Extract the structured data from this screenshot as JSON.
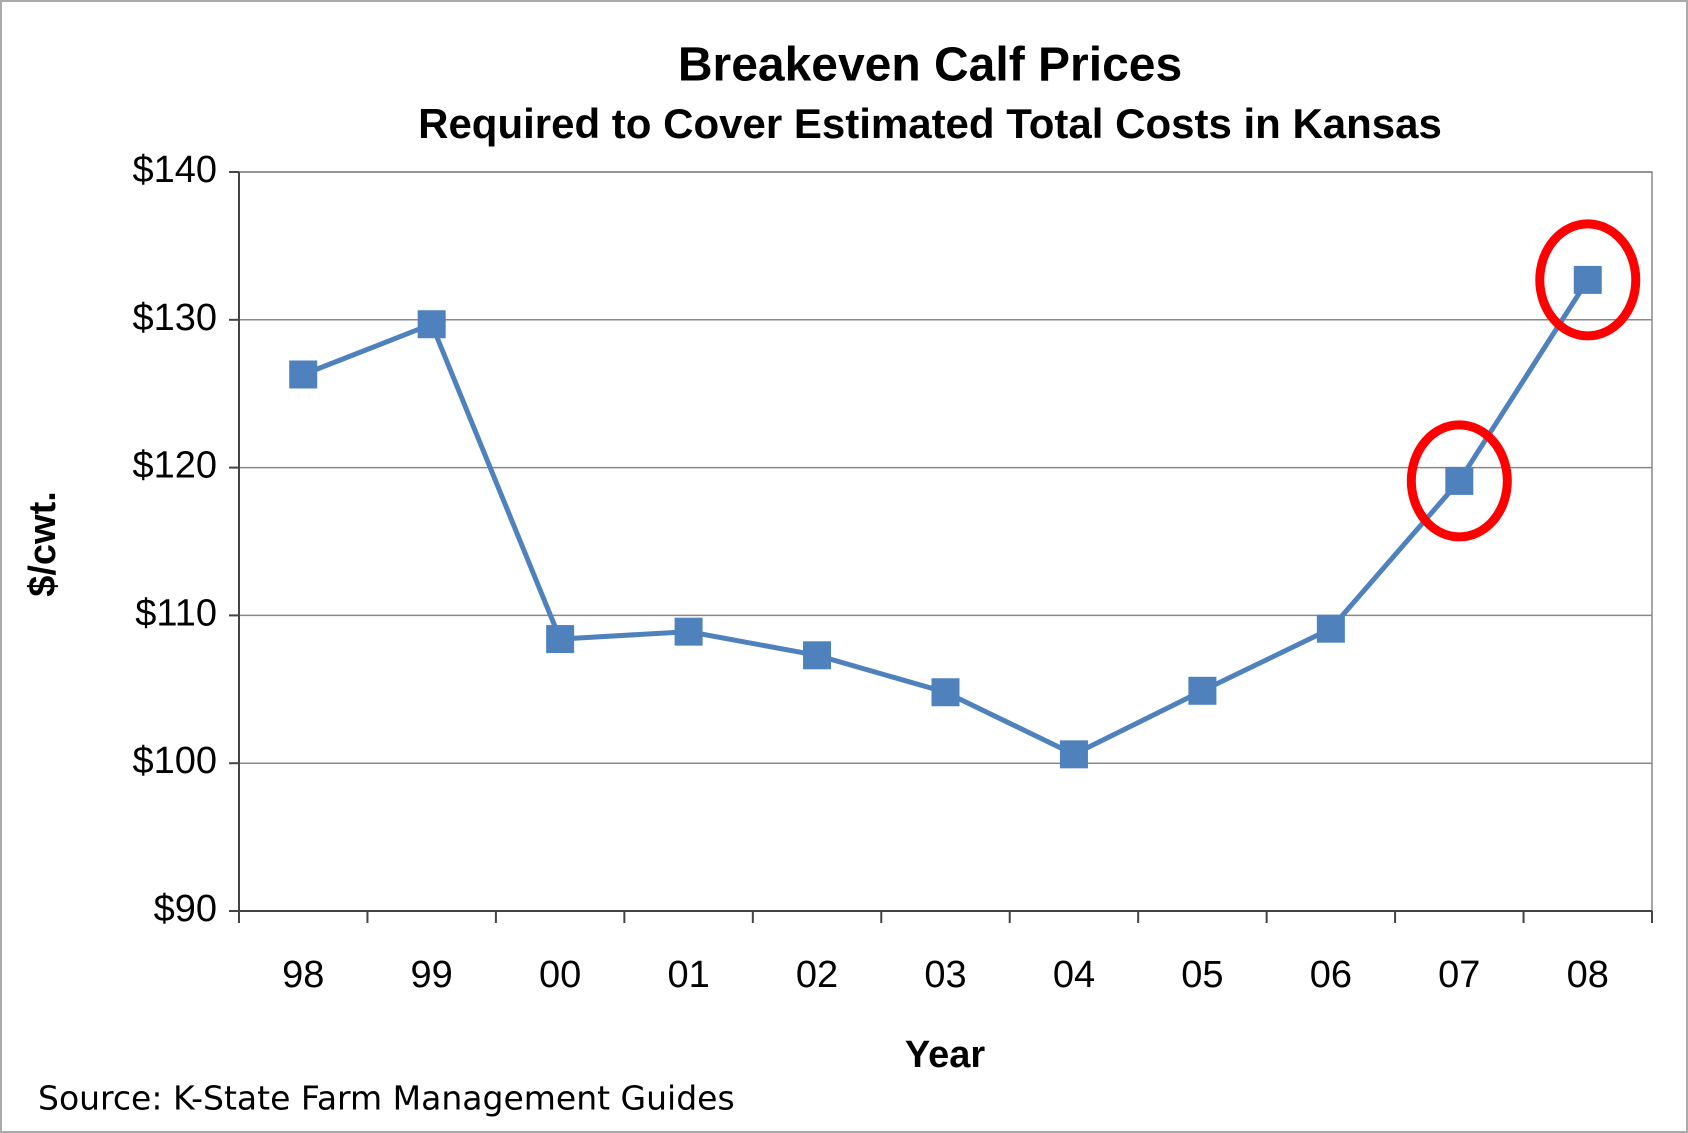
{
  "chart_data": {
    "type": "line",
    "title": "Breakeven Calf Prices",
    "subtitle": "Required to Cover Estimated Total Costs in Kansas",
    "x_label": "Year",
    "y_label": "$/cwt.",
    "source": "Source: K-State Farm Management  Guides",
    "categories": [
      "98",
      "99",
      "00",
      "01",
      "02",
      "03",
      "04",
      "05",
      "06",
      "07",
      "08"
    ],
    "series": [
      {
        "name": "Breakeven Calf Price",
        "color": "#4f81bd",
        "values": [
          126.3,
          129.7,
          108.4,
          108.9,
          107.3,
          104.8,
          100.6,
          104.9,
          109.1,
          119.1,
          132.7
        ]
      }
    ],
    "ylim": [
      90,
      140
    ],
    "yticks": [
      {
        "value": 90,
        "label": "$90"
      },
      {
        "value": 100,
        "label": "$100"
      },
      {
        "value": 110,
        "label": "$110"
      },
      {
        "value": 120,
        "label": "$120"
      },
      {
        "value": 130,
        "label": "$130"
      },
      {
        "value": 140,
        "label": "$140"
      }
    ],
    "grid": true,
    "highlighted": [
      "07",
      "08"
    ],
    "highlight_color": "#ff0000"
  }
}
